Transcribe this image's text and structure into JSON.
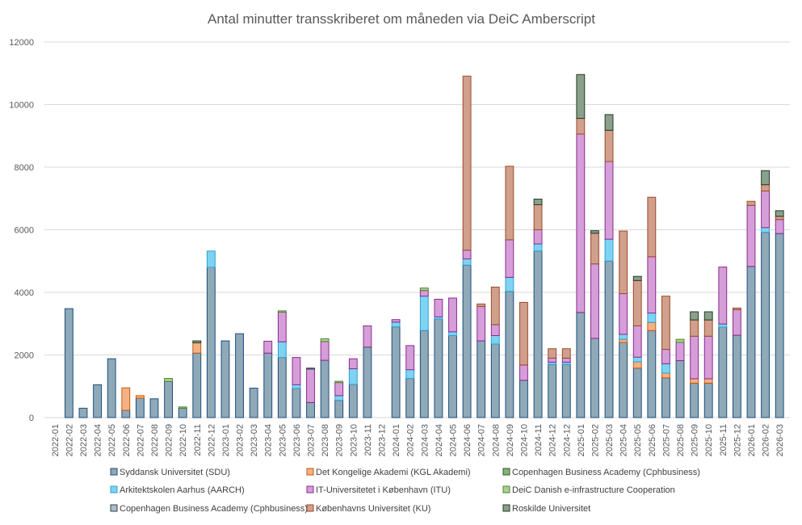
{
  "chart_data": {
    "type": "bar",
    "stacked": true,
    "title": "Antal minutter transskriberet om måneden via DeiC Amberscript",
    "xlabel": "",
    "ylabel": "",
    "ylim": [
      0,
      12000
    ],
    "yticks": [
      0,
      2000,
      4000,
      6000,
      8000,
      10000,
      12000
    ],
    "grid": true,
    "legend_position": "bottom",
    "categories": [
      "2022-01",
      "2022-02",
      "2022-03",
      "2022-04",
      "2022-05",
      "2022-06",
      "2022-07",
      "2022-08",
      "2022-09",
      "2022-10",
      "2022-11",
      "2022-12",
      "2023-01",
      "2023-02",
      "2023-03",
      "2023-04",
      "2023-05",
      "2023-06",
      "2023-07",
      "2023-08",
      "2023-09",
      "2023-10",
      "2023-11",
      "2023-12",
      "2024-01",
      "2024-02",
      "2024-03",
      "2024-04",
      "2024-05",
      "2024-06",
      "2024-07",
      "2024-08",
      "2024-09",
      "2024-10",
      "2024-11",
      "2024-12",
      "2024-12",
      "2025-01",
      "2025-02",
      "2025-03",
      "2025-04",
      "2025-05",
      "2025-06",
      "2025-07",
      "2025-08",
      "2025-09",
      "2025-10",
      "2025-11",
      "2025-12",
      "2026-01",
      "2026-02",
      "2026-03"
    ],
    "series": [
      {
        "name": "Syddansk Universitet (SDU)",
        "color": "#8fa9b8",
        "stroke": "#1f4e79",
        "values": [
          0,
          3480,
          300,
          1050,
          1880,
          230,
          620,
          600,
          1150,
          300,
          2060,
          4800,
          2450,
          2680,
          940,
          2060,
          1920,
          930,
          480,
          1830,
          550,
          1060,
          2250,
          0,
          2900,
          1250,
          2780,
          3150,
          2620,
          4870,
          2450,
          2350,
          4030,
          1190,
          5320,
          1700,
          1700,
          3360,
          2530,
          5000,
          2400,
          1580,
          2780,
          1270,
          1820,
          1100,
          1100,
          2890,
          2630,
          4830,
          5920,
          5880
        ]
      },
      {
        "name": "Det Kongelige Akademi (KGL Akademi)",
        "color": "#f4b183",
        "stroke": "#c55a11",
        "values": [
          0,
          0,
          0,
          0,
          0,
          720,
          80,
          0,
          0,
          0,
          330,
          0,
          0,
          0,
          0,
          0,
          0,
          0,
          0,
          0,
          0,
          0,
          0,
          0,
          0,
          0,
          0,
          0,
          0,
          0,
          0,
          0,
          0,
          0,
          0,
          0,
          0,
          0,
          0,
          0,
          100,
          200,
          260,
          150,
          0,
          140,
          140,
          0,
          0,
          0,
          0,
          0
        ]
      },
      {
        "name": "Copenhagen Business Academy (Cphbusiness)",
        "color": "#82b57a",
        "stroke": "#375623",
        "values": [
          0,
          0,
          0,
          0,
          0,
          0,
          0,
          0,
          0,
          0,
          0,
          0,
          0,
          0,
          0,
          0,
          0,
          0,
          0,
          0,
          0,
          0,
          0,
          0,
          0,
          0,
          0,
          0,
          0,
          0,
          0,
          0,
          0,
          0,
          0,
          0,
          0,
          0,
          0,
          0,
          0,
          0,
          0,
          0,
          0,
          0,
          0,
          0,
          0,
          0,
          0,
          0
        ]
      },
      {
        "name": "Arkitektskolen Aarhus (AARCH)",
        "color": "#7fd3f2",
        "stroke": "#2e9fd0",
        "values": [
          0,
          0,
          0,
          0,
          0,
          0,
          0,
          0,
          0,
          0,
          0,
          520,
          0,
          0,
          0,
          0,
          500,
          120,
          0,
          0,
          150,
          500,
          0,
          0,
          150,
          280,
          1100,
          70,
          120,
          200,
          0,
          270,
          450,
          0,
          230,
          70,
          70,
          0,
          0,
          700,
          160,
          150,
          300,
          300,
          0,
          0,
          0,
          100,
          0,
          0,
          150,
          0
        ]
      },
      {
        "name": "IT-Universitetet i København (ITU)",
        "color": "#d59ed8",
        "stroke": "#8b2a8f",
        "values": [
          0,
          0,
          0,
          0,
          0,
          0,
          0,
          0,
          0,
          0,
          0,
          0,
          0,
          0,
          0,
          380,
          950,
          870,
          1070,
          600,
          420,
          320,
          680,
          0,
          80,
          770,
          180,
          560,
          1080,
          280,
          1100,
          350,
          1200,
          490,
          450,
          130,
          130,
          5700,
          2380,
          2480,
          1300,
          1000,
          1800,
          460,
          580,
          1360,
          1360,
          1820,
          820,
          1950,
          1170,
          450
        ]
      },
      {
        "name": "DeiC Danish e-infrastructure Cooperation",
        "color": "#a8d08d",
        "stroke": "#548235",
        "values": [
          0,
          0,
          0,
          0,
          0,
          0,
          0,
          0,
          100,
          40,
          0,
          0,
          0,
          0,
          0,
          0,
          40,
          0,
          0,
          90,
          40,
          0,
          0,
          0,
          0,
          0,
          80,
          0,
          0,
          0,
          0,
          0,
          0,
          0,
          0,
          0,
          0,
          0,
          0,
          0,
          0,
          0,
          0,
          0,
          100,
          0,
          0,
          0,
          0,
          0,
          0,
          0
        ]
      },
      {
        "name": "Copenhagen Business Academy (Cphbusiness)",
        "color": "#acbbc9",
        "stroke": "#333f50",
        "values": [
          0,
          0,
          0,
          0,
          0,
          0,
          0,
          0,
          0,
          0,
          0,
          0,
          0,
          0,
          0,
          0,
          0,
          0,
          30,
          0,
          0,
          0,
          0,
          0,
          0,
          0,
          0,
          0,
          0,
          0,
          0,
          0,
          0,
          0,
          0,
          0,
          0,
          0,
          0,
          0,
          0,
          0,
          0,
          0,
          0,
          0,
          0,
          0,
          0,
          0,
          0,
          0
        ]
      },
      {
        "name": "Københavns Universitet (KU)",
        "color": "#d0a08c",
        "stroke": "#9c4a2a",
        "values": [
          0,
          0,
          0,
          0,
          0,
          0,
          0,
          0,
          0,
          0,
          0,
          0,
          0,
          0,
          0,
          0,
          0,
          0,
          0,
          0,
          0,
          0,
          0,
          0,
          0,
          0,
          0,
          0,
          0,
          5560,
          80,
          1200,
          2350,
          2000,
          800,
          300,
          300,
          500,
          980,
          1000,
          2000,
          1450,
          1900,
          1700,
          0,
          520,
          520,
          0,
          50,
          130,
          200,
          100
        ]
      },
      {
        "name": "Roskilde Universitet",
        "color": "#8aa08a",
        "stroke": "#253825",
        "values": [
          0,
          0,
          0,
          0,
          0,
          0,
          0,
          0,
          0,
          0,
          60,
          0,
          0,
          0,
          0,
          0,
          0,
          0,
          0,
          0,
          0,
          0,
          0,
          0,
          0,
          0,
          0,
          0,
          0,
          0,
          0,
          0,
          0,
          0,
          180,
          0,
          0,
          1400,
          80,
          500,
          0,
          130,
          0,
          0,
          0,
          260,
          260,
          0,
          0,
          0,
          450,
          180
        ]
      }
    ]
  }
}
